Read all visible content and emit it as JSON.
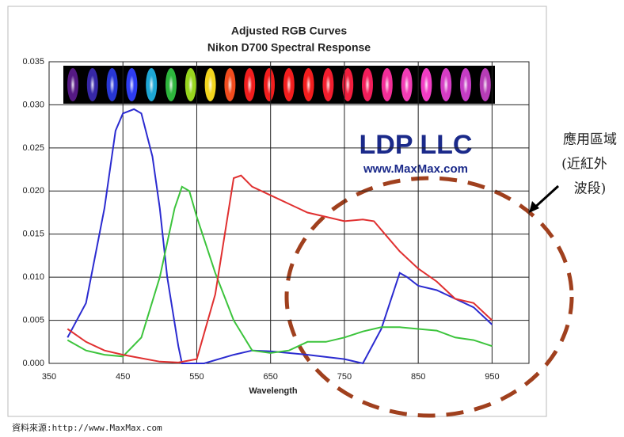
{
  "chart_data": {
    "type": "line",
    "title": "Adjusted RGB Curves",
    "subtitle": "Nikon D700 Spectral Response",
    "x_label": "Wavelength",
    "watermark": "LDP LLC",
    "watermark_url": "www.MaxMax.com",
    "annotation": [
      "應用區域",
      "(近紅外",
      "波段)"
    ],
    "source": "資料來源:http://www.MaxMax.com",
    "xlim": [
      350,
      1000
    ],
    "xticks": [
      350,
      450,
      550,
      650,
      750,
      850,
      950
    ],
    "ylim": [
      0,
      0.035
    ],
    "yticks": [
      {
        "value": 0,
        "label": "0.000"
      },
      {
        "value": 0.005,
        "label": "0.005"
      },
      {
        "value": 0.01,
        "label": "0.010"
      },
      {
        "value": 0.015,
        "label": "0.015"
      },
      {
        "value": 0.02,
        "label": "0.020"
      },
      {
        "value": 0.025,
        "label": "0.025"
      },
      {
        "value": 0.03,
        "label": "0.030"
      },
      {
        "value": 0.035,
        "label": "0.035"
      }
    ],
    "grid": true,
    "series": [
      {
        "color": "#2b2bd0",
        "x": [
          375,
          400,
          425,
          440,
          450,
          465,
          475,
          490,
          500,
          510,
          525,
          530,
          560,
          600,
          625,
          650,
          700,
          750,
          775,
          800,
          825,
          835,
          850,
          875,
          900,
          925,
          950
        ],
        "values": [
          0.003,
          0.007,
          0.018,
          0.027,
          0.029,
          0.0295,
          0.029,
          0.024,
          0.018,
          0.01,
          0.002,
          0,
          0,
          0.001,
          0.0015,
          0.0014,
          0.001,
          0.0005,
          0,
          0.004,
          0.0105,
          0.01,
          0.009,
          0.0085,
          0.0075,
          0.0065,
          0.0045
        ]
      },
      {
        "color": "#3cc43c",
        "x": [
          375,
          400,
          425,
          450,
          475,
          500,
          520,
          530,
          540,
          550,
          575,
          600,
          625,
          650,
          675,
          700,
          725,
          750,
          775,
          800,
          825,
          850,
          875,
          900,
          925,
          950
        ],
        "values": [
          0.0027,
          0.0015,
          0.001,
          0.0008,
          0.003,
          0.01,
          0.018,
          0.0205,
          0.02,
          0.017,
          0.0105,
          0.005,
          0.0015,
          0.0012,
          0.0015,
          0.0025,
          0.0025,
          0.003,
          0.0037,
          0.0042,
          0.0042,
          0.004,
          0.0038,
          0.003,
          0.0027,
          0.002
        ]
      },
      {
        "color": "#e03030",
        "x": [
          375,
          400,
          425,
          450,
          475,
          500,
          525,
          550,
          575,
          600,
          610,
          625,
          650,
          675,
          700,
          725,
          750,
          775,
          790,
          800,
          825,
          850,
          875,
          900,
          925,
          950
        ],
        "values": [
          0.004,
          0.0025,
          0.0015,
          0.001,
          0.0006,
          0.0002,
          0.0001,
          0.0005,
          0.008,
          0.0215,
          0.0218,
          0.0205,
          0.0195,
          0.0185,
          0.0175,
          0.017,
          0.0165,
          0.0167,
          0.0165,
          0.0155,
          0.013,
          0.011,
          0.0095,
          0.0075,
          0.007,
          0.005
        ]
      }
    ]
  }
}
